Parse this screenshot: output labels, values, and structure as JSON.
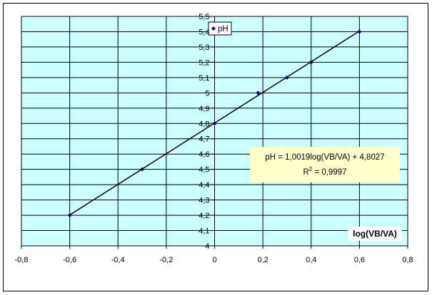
{
  "chart_data": {
    "type": "scatter",
    "xlabel": "log(VB/VA)",
    "ylabel": "",
    "xlim": [
      -0.8,
      0.8
    ],
    "ylim": [
      4,
      5.5
    ],
    "x_ticks": [
      "-0,8",
      "-0,6",
      "-0,4",
      "-0,2",
      "0",
      "0,2",
      "0,4",
      "0,6",
      "0,8"
    ],
    "y_ticks": [
      "4",
      "4,1",
      "4,2",
      "4,3",
      "4,4",
      "4,5",
      "4,6",
      "4,7",
      "4,8",
      "4,9",
      "5",
      "5,1",
      "5,2",
      "5,3",
      "5,4",
      "5,5"
    ],
    "series": [
      {
        "name": "pH",
        "x": [
          -0.6,
          -0.3,
          0.0,
          0.18,
          0.3,
          0.4,
          0.6
        ],
        "y": [
          4.2,
          4.5,
          4.8,
          5.0,
          5.1,
          5.2,
          5.4
        ]
      }
    ],
    "trendline": {
      "slope": 1.0019,
      "intercept": 4.8027,
      "x_range": [
        -0.6,
        0.6
      ]
    },
    "equation_line1": "pH = 1,0019log(VB/VA) + 4,8027",
    "equation_r2_prefix": "R",
    "equation_r2_exp": "2",
    "equation_r2_value": " = 0,9997",
    "legend_position": "top-right",
    "grid": true,
    "colors": {
      "plot_background": "#ccffff",
      "marker": "#000080",
      "line": "#000000",
      "annotation_background": "#ffffcc"
    }
  }
}
